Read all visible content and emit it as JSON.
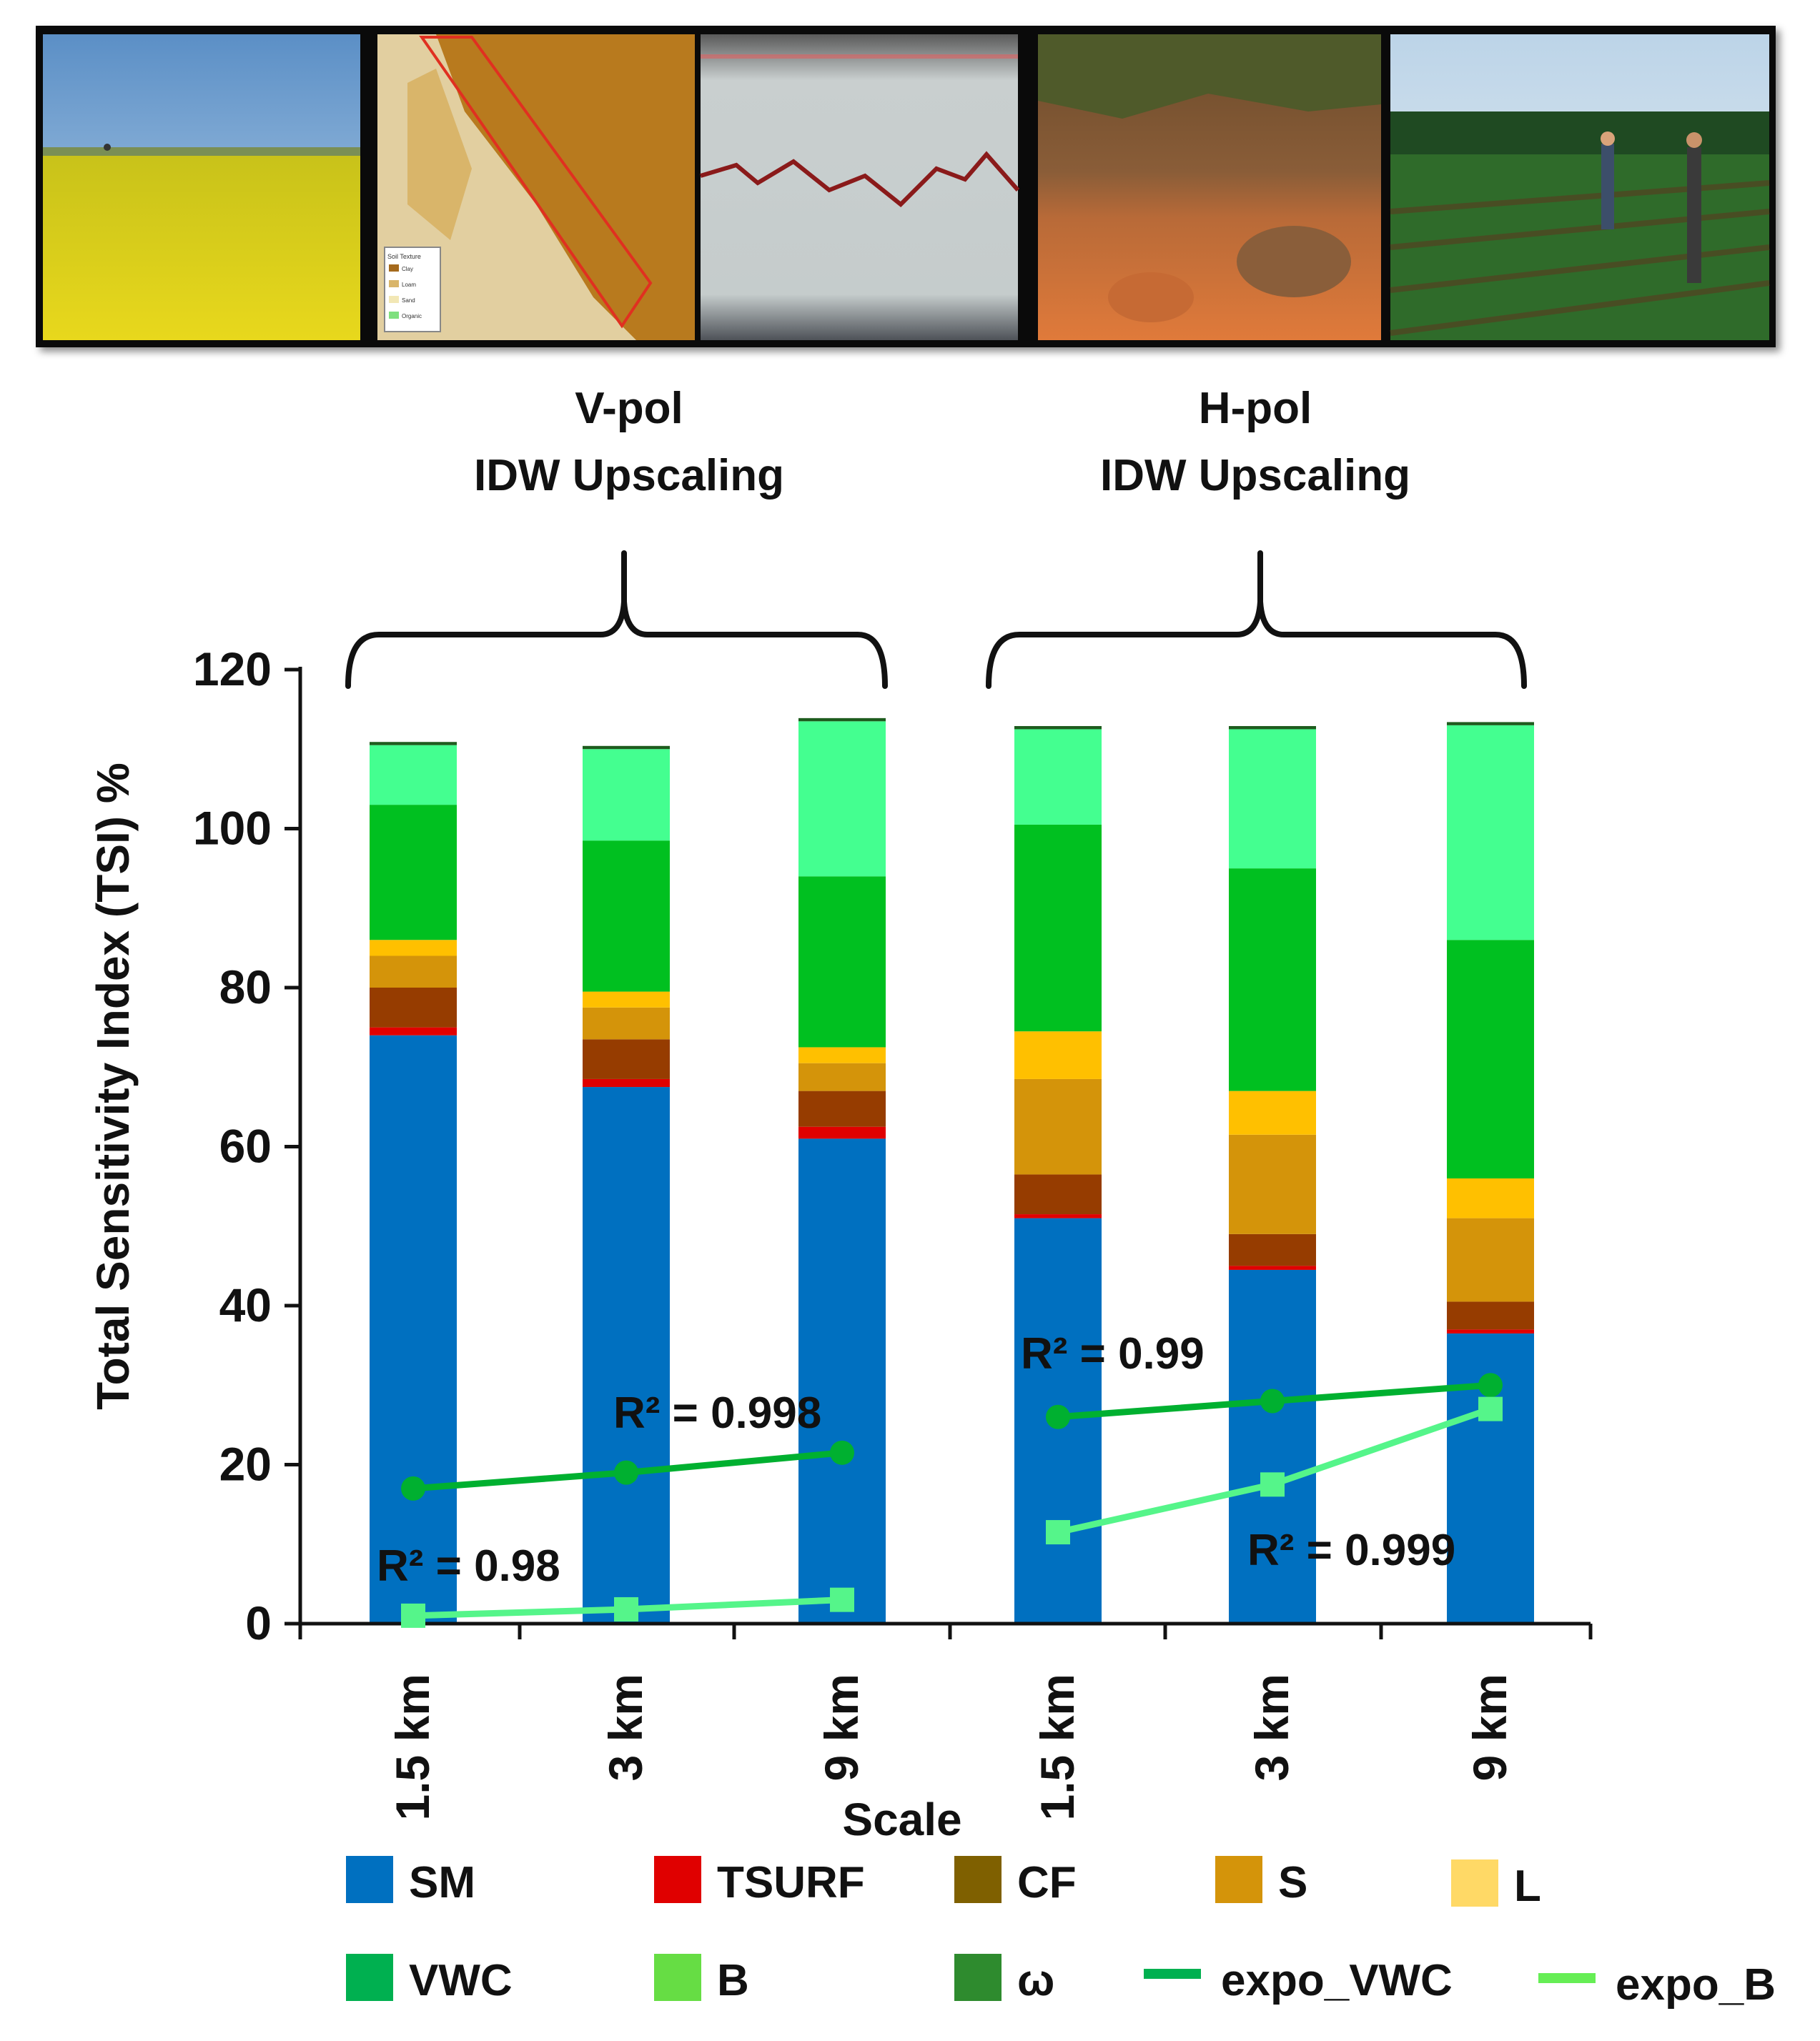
{
  "photos": [
    {
      "name": "rapeseed-field-photo"
    },
    {
      "name": "soil-texture-map"
    },
    {
      "name": "soil-profile-photo"
    },
    {
      "name": "soil-pit-photo"
    },
    {
      "name": "crop-row-field-photo"
    }
  ],
  "map_legend": {
    "title": "Soil Texture",
    "items": [
      "Clay",
      "Loam",
      "Sand",
      "Organic"
    ]
  },
  "groups": [
    {
      "line1": "V-pol",
      "line2": "IDW Upscaling"
    },
    {
      "line1": "H-pol",
      "line2": "IDW Upscaling"
    }
  ],
  "chart_data": {
    "type": "bar",
    "stacked": true,
    "title": "",
    "xlabel": "Scale",
    "ylabel": "Total Sensitivity Index (TSI) %",
    "ylim": [
      0,
      120
    ],
    "yticks": [
      0,
      20,
      40,
      60,
      80,
      100,
      120
    ],
    "categories": [
      "1.5 km",
      "3 km",
      "9 km",
      "1.5 km",
      "3 km",
      "9 km"
    ],
    "series": [
      {
        "name": "SM",
        "color": "#0070C0",
        "values": [
          74,
          67.5,
          61,
          51,
          44.5,
          36.5
        ]
      },
      {
        "name": "TSURF",
        "color": "#E00000",
        "values": [
          1,
          1,
          1.5,
          0.5,
          0.5,
          0.5
        ]
      },
      {
        "name": "CF",
        "color": "#963C00",
        "values": [
          5,
          5,
          4.5,
          5,
          4,
          3.5
        ]
      },
      {
        "name": "S",
        "color": "#D4940A",
        "values": [
          4,
          4,
          3.5,
          12,
          12.5,
          10.5
        ]
      },
      {
        "name": "L",
        "color": "#FFC000",
        "values": [
          2,
          2,
          2,
          6,
          5.5,
          5
        ]
      },
      {
        "name": "VWC",
        "color": "#00C020",
        "values": [
          17,
          19,
          21.5,
          26,
          28,
          30
        ]
      },
      {
        "name": "B",
        "color": "#44FF90",
        "values": [
          7.5,
          11.5,
          19.5,
          12,
          17.5,
          27
        ]
      },
      {
        "name": "ω",
        "color": "#1E5C1E",
        "values": [
          0.4,
          0.4,
          0.4,
          0.4,
          0.4,
          0.4
        ]
      }
    ],
    "lines": [
      {
        "name": "expo_VWC",
        "color": "#00B030",
        "marker": "circle",
        "group": "V-pol",
        "points": [
          17,
          19,
          21.5
        ]
      },
      {
        "name": "expo_B",
        "color": "#55F58A",
        "marker": "square",
        "group": "V-pol",
        "points": [
          1,
          1.8,
          3
        ]
      },
      {
        "name": "expo_VWC",
        "color": "#00B030",
        "marker": "circle",
        "group": "H-pol",
        "points": [
          26,
          28,
          30
        ]
      },
      {
        "name": "expo_B",
        "color": "#55F58A",
        "marker": "square",
        "group": "H-pol",
        "points": [
          11.5,
          17.5,
          27
        ]
      }
    ],
    "annotations": [
      {
        "text": "R² = 0.998",
        "near": "V-pol expo_VWC"
      },
      {
        "text": "R² = 0.98",
        "near": "V-pol expo_B"
      },
      {
        "text": "R² = 0.99",
        "near": "H-pol expo_VWC"
      },
      {
        "text": "R² = 0.999",
        "near": "H-pol expo_B"
      }
    ],
    "legend": {
      "placement": "bottom",
      "items": [
        {
          "label": "SM",
          "color": "#0070C0",
          "kind": "box"
        },
        {
          "label": "TSURF",
          "color": "#E00000",
          "kind": "box"
        },
        {
          "label": "CF",
          "color": "#7F6000",
          "kind": "box"
        },
        {
          "label": "S",
          "color": "#D4940A",
          "kind": "box"
        },
        {
          "label": "L",
          "color": "#FFD966",
          "kind": "box"
        },
        {
          "label": "VWC",
          "color": "#00B050",
          "kind": "box"
        },
        {
          "label": "B",
          "color": "#66DD44",
          "kind": "box"
        },
        {
          "label": "ω",
          "color": "#2E8B2E",
          "kind": "box"
        },
        {
          "label": "expo_VWC",
          "color": "#00B050",
          "kind": "line"
        },
        {
          "label": "expo_B",
          "color": "#66EE55",
          "kind": "line"
        }
      ]
    }
  }
}
